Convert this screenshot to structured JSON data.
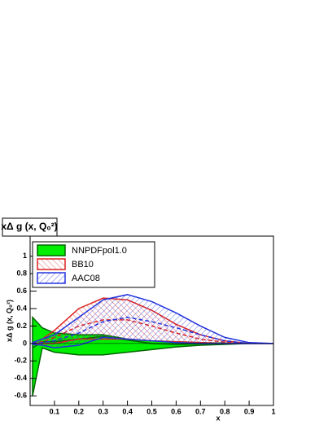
{
  "chart_data": {
    "type": "band",
    "title": "xΔ g (x, Q₀²)",
    "ylabel": "xΔ g (x, Q₀²)",
    "xlabel": "x",
    "x": [
      0.01,
      0.05,
      0.1,
      0.2,
      0.3,
      0.4,
      0.5,
      0.6,
      0.7,
      0.8,
      0.9,
      1.0
    ],
    "series": [
      {
        "name": "NNPDFpol1.0",
        "color": "#00ee00",
        "line": "#006600",
        "hatch": false,
        "values": [
          -0.05,
          0.02,
          0.02,
          0.05,
          0.08,
          0.04,
          0.0,
          -0.01,
          -0.005,
          0.0,
          0.0,
          0.0
        ],
        "upper": [
          0.3,
          0.18,
          0.12,
          0.1,
          0.1,
          0.05,
          0.03,
          0.02,
          0.01,
          0.005,
          0.0,
          0.0
        ],
        "lower": [
          -0.6,
          -0.05,
          -0.1,
          -0.13,
          -0.13,
          -0.1,
          -0.07,
          -0.04,
          -0.02,
          -0.01,
          0.0,
          0.0
        ]
      },
      {
        "name": "BB10",
        "color": "#dd2222",
        "line": "#dd2222",
        "hatch": true,
        "values": [
          0.0,
          0.02,
          0.07,
          0.2,
          0.27,
          0.27,
          0.2,
          0.12,
          0.05,
          0.015,
          0.0,
          0.0
        ],
        "upper": [
          0.01,
          0.05,
          0.15,
          0.4,
          0.52,
          0.5,
          0.38,
          0.22,
          0.1,
          0.03,
          0.0,
          0.0
        ],
        "lower": [
          0.0,
          0.0,
          0.0,
          0.05,
          0.05,
          0.05,
          0.03,
          0.02,
          0.01,
          0.0,
          0.0,
          0.0
        ]
      },
      {
        "name": "AAC08",
        "color": "#2233dd",
        "line": "#2233dd",
        "hatch": true,
        "values": [
          0.0,
          0.01,
          0.03,
          0.12,
          0.25,
          0.3,
          0.25,
          0.18,
          0.1,
          0.03,
          0.0,
          0.0
        ],
        "upper": [
          0.01,
          0.05,
          0.1,
          0.3,
          0.5,
          0.56,
          0.48,
          0.35,
          0.2,
          0.07,
          0.01,
          0.0
        ],
        "lower": [
          -0.01,
          -0.02,
          -0.05,
          -0.02,
          0.07,
          0.05,
          0.03,
          0.01,
          0.0,
          0.0,
          0.0,
          0.0
        ]
      }
    ],
    "xlim": [
      0,
      1
    ],
    "ylim": [
      -0.71,
      1.23
    ],
    "xticks": [
      0.1,
      0.2,
      0.3,
      0.4,
      0.5,
      0.6,
      0.7,
      0.8,
      0.9,
      1
    ],
    "yticks": [
      -0.6,
      -0.4,
      -0.2,
      0,
      0.2,
      0.4,
      0.6,
      0.8,
      1
    ],
    "legend": "top-left"
  }
}
